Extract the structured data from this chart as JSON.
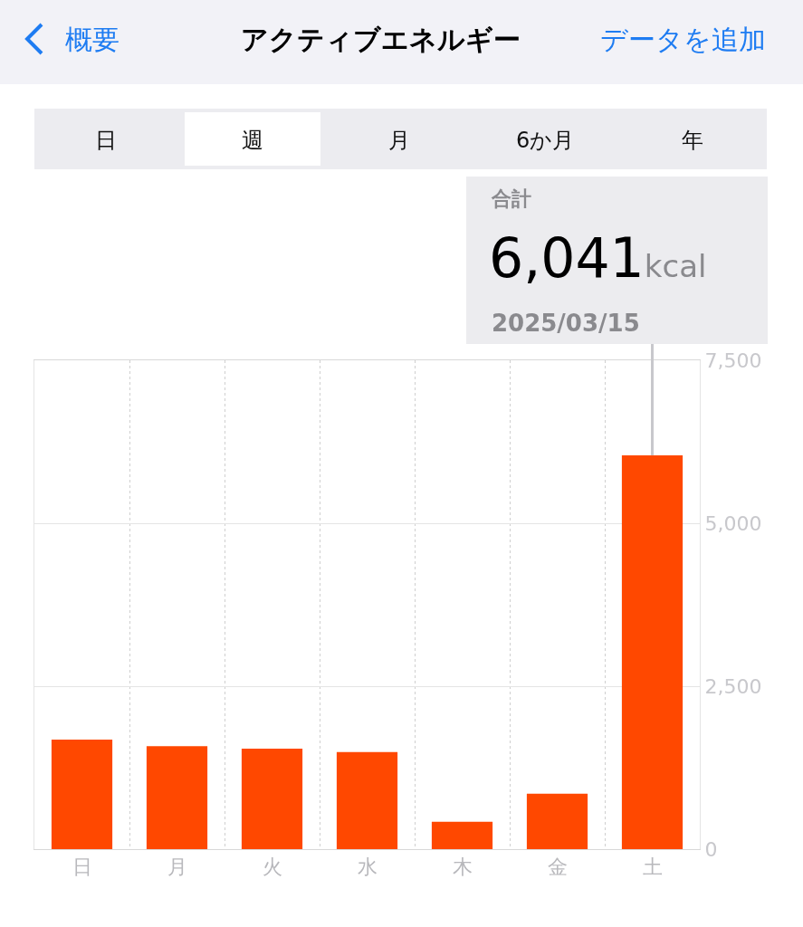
{
  "chart_data": {
    "type": "bar",
    "title": "アクティブエネルギー",
    "categories": [
      "日",
      "月",
      "火",
      "水",
      "木",
      "金",
      "土"
    ],
    "values": [
      1680,
      1580,
      1540,
      1490,
      420,
      850,
      6041
    ],
    "color": "#ff4800",
    "ylim": [
      0,
      7500
    ],
    "yticks": [
      0,
      {
        "value": 2500,
        "label": "2,500"
      },
      {
        "value": 5000,
        "label": "5,000"
      },
      {
        "value": 7500,
        "label": "7,500"
      }
    ],
    "grid": true,
    "annotations": [
      "概要",
      "データを追加",
      "日",
      "週",
      "月",
      "6か月",
      "年",
      "合計",
      "6,041kcal",
      {
        "text": "2025/03/15",
        "x": "土",
        "y": 6041
      }
    ]
  }
}
